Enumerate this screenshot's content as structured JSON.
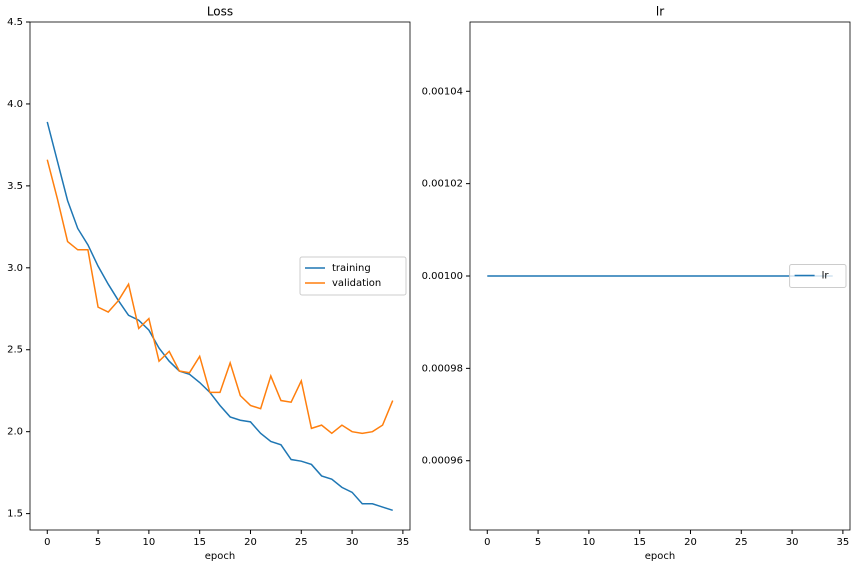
{
  "chart_data": [
    {
      "type": "line",
      "title": "Loss",
      "x_label": "epoch",
      "x": [
        0,
        1,
        2,
        3,
        4,
        5,
        6,
        7,
        8,
        9,
        10,
        11,
        12,
        13,
        14,
        15,
        16,
        17,
        18,
        19,
        20,
        21,
        22,
        23,
        24,
        25,
        26,
        27,
        28,
        29,
        30,
        31,
        32,
        33,
        34
      ],
      "series": [
        {
          "name": "training",
          "color": "#1f77b4",
          "values": [
            3.89,
            3.65,
            3.41,
            3.24,
            3.14,
            3.01,
            2.9,
            2.8,
            2.71,
            2.68,
            2.62,
            2.51,
            2.43,
            2.37,
            2.35,
            2.3,
            2.24,
            2.16,
            2.09,
            2.07,
            2.06,
            1.99,
            1.94,
            1.92,
            1.83,
            1.82,
            1.8,
            1.73,
            1.71,
            1.66,
            1.63,
            1.56,
            1.56,
            1.54,
            1.52
          ]
        },
        {
          "name": "validation",
          "color": "#ff7f0e",
          "values": [
            3.66,
            3.42,
            3.16,
            3.11,
            3.11,
            2.76,
            2.73,
            2.8,
            2.9,
            2.63,
            2.69,
            2.43,
            2.49,
            2.37,
            2.36,
            2.46,
            2.24,
            2.24,
            2.42,
            2.22,
            2.16,
            2.14,
            2.34,
            2.19,
            2.18,
            2.31,
            2.02,
            2.04,
            1.99,
            2.04,
            2.0,
            1.99,
            2.0,
            2.04,
            2.19
          ]
        }
      ],
      "xlim": [
        -1.7,
        35.7
      ],
      "xticks": [
        0,
        5,
        10,
        15,
        20,
        25,
        30,
        35
      ],
      "ylim": [
        1.4,
        4.5
      ],
      "yticks": [
        1.5,
        {
          "value": 2,
          "label": "2.0"
        },
        2.5,
        {
          "value": 3,
          "label": "3.0"
        },
        3.5,
        {
          "value": 4,
          "label": "4.0"
        },
        4.5
      ],
      "legend": "center right",
      "grid": false
    },
    {
      "type": "line",
      "title": "lr",
      "x_label": "epoch",
      "x": [
        0,
        1,
        2,
        3,
        4,
        5,
        6,
        7,
        8,
        9,
        10,
        11,
        12,
        13,
        14,
        15,
        16,
        17,
        18,
        19,
        20,
        21,
        22,
        23,
        24,
        25,
        26,
        27,
        28,
        29,
        30,
        31,
        32,
        33,
        34
      ],
      "series": [
        {
          "name": "lr",
          "color": "#1f77b4",
          "values": [
            0.001,
            0.001,
            0.001,
            0.001,
            0.001,
            0.001,
            0.001,
            0.001,
            0.001,
            0.001,
            0.001,
            0.001,
            0.001,
            0.001,
            0.001,
            0.001,
            0.001,
            0.001,
            0.001,
            0.001,
            0.001,
            0.001,
            0.001,
            0.001,
            0.001,
            0.001,
            0.001,
            0.001,
            0.001,
            0.001,
            0.001,
            0.001,
            0.001,
            0.001,
            0.001
          ]
        }
      ],
      "xlim": [
        -1.7,
        35.7
      ],
      "xticks": [
        0,
        5,
        10,
        15,
        20,
        25,
        30,
        35
      ],
      "ylim": [
        0.000945,
        0.001055
      ],
      "yticks": [
        0.00096,
        0.00098,
        {
          "value": 0.001,
          "label": "0.00100"
        },
        0.00102,
        0.00104
      ],
      "legend": "center right",
      "grid": false
    }
  ]
}
